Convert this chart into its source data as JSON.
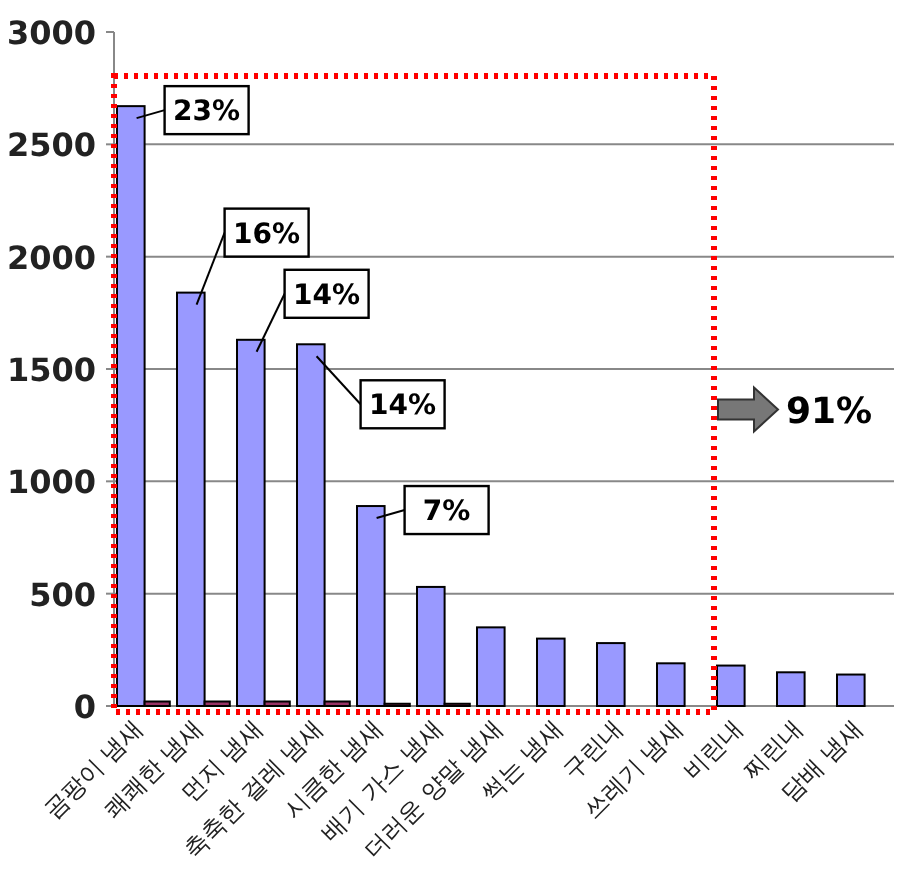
{
  "chart_data": {
    "type": "bar",
    "categories": [
      "곰팡이 냄새",
      "쾌쾌한 냄새",
      "먼지 냄새",
      "축축한 걸레 냄새",
      "시큼한 냄새",
      "배기 가스 냄새",
      "더러운 양말 냄새",
      "썩는 냄새",
      "구린내",
      "쓰레기 냄새",
      "비린내",
      "찌린내",
      "담배 냄새"
    ],
    "series": [
      {
        "color": "#9999ff",
        "values": [
          2670,
          1840,
          1630,
          1610,
          890,
          530,
          350,
          300,
          280,
          190,
          180,
          150,
          140
        ]
      },
      {
        "color": "#993366",
        "values": [
          20,
          20,
          20,
          20,
          10,
          10,
          0,
          0,
          0,
          0,
          0,
          0,
          0
        ]
      }
    ],
    "ylim": [
      0,
      3000
    ],
    "yticks": [
      0,
      500,
      1000,
      1500,
      2000,
      2500,
      3000
    ],
    "grid": "y",
    "annotations": [
      {
        "text": "23%",
        "x": "곰팡이 냄새",
        "y": 2670
      },
      {
        "text": "16%",
        "x": "쾌쾌한 냄새",
        "y": 1840
      },
      {
        "text": "14%",
        "x": "먼지 냄새",
        "y": 1630
      },
      {
        "text": "14%",
        "x": "축축한 걸레 냄새",
        "y": 1610
      },
      {
        "text": "7%",
        "x": "시큼한 냄새",
        "y": 890
      },
      "91%"
    ]
  }
}
